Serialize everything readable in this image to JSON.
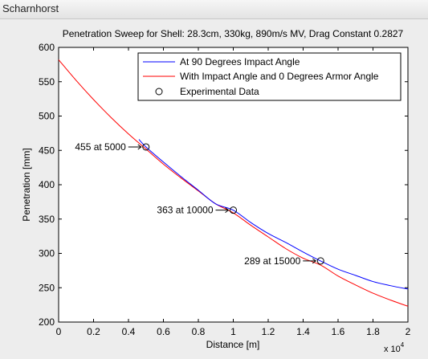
{
  "window": {
    "title": "Scharnhorst"
  },
  "chart_data": {
    "type": "line",
    "title": "Penetration Sweep for Shell: 28.3cm, 330kg, 890m/s MV, Drag Constant 0.2827",
    "xlabel": "Distance [m]",
    "ylabel": "Penetration [mm]",
    "x_multiplier_label": "x 10",
    "x_multiplier_exponent": "4",
    "xlim": [
      0,
      20000
    ],
    "ylim": [
      200,
      600
    ],
    "xticks": [
      0,
      2000,
      4000,
      6000,
      8000,
      10000,
      12000,
      14000,
      16000,
      18000,
      20000
    ],
    "xtick_labels": [
      "0",
      "0.2",
      "0.4",
      "0.6",
      "0.8",
      "1",
      "1.2",
      "1.4",
      "1.6",
      "1.8",
      "2"
    ],
    "yticks": [
      200,
      250,
      300,
      350,
      400,
      450,
      500,
      550,
      600
    ],
    "ytick_labels": [
      "200",
      "250",
      "300",
      "350",
      "400",
      "450",
      "500",
      "550",
      "600"
    ],
    "grid": false,
    "legend_position": "top-right",
    "series": [
      {
        "name": "At 90 Degrees Impact Angle",
        "color": "#0000ff",
        "x": [
          4600,
          5000,
          6000,
          7000,
          8000,
          9000,
          10000,
          11000,
          12000,
          13000,
          14000,
          15000,
          16000,
          17000,
          18000,
          19000,
          20000
        ],
        "y": [
          466,
          455,
          433,
          412,
          392,
          372,
          363,
          345,
          329,
          316,
          302,
          289,
          277,
          268,
          259,
          253,
          248
        ]
      },
      {
        "name": "With Impact Angle and 0 Degrees Armor Angle",
        "color": "#ff0000",
        "x": [
          0,
          1000,
          2000,
          3000,
          4000,
          5000,
          6000,
          7000,
          8000,
          9000,
          10000,
          11000,
          12000,
          13000,
          14000,
          15000,
          16000,
          17000,
          18000,
          19000,
          20000
        ],
        "y": [
          582,
          552,
          524,
          498,
          474,
          452,
          430,
          410,
          391,
          372,
          359,
          341,
          324,
          307,
          293,
          283,
          267,
          254,
          242,
          232,
          223
        ]
      },
      {
        "name": "Experimental Data",
        "marker": "circle",
        "x": [
          5000,
          10000,
          15000
        ],
        "y": [
          455,
          363,
          289
        ]
      }
    ],
    "annotations": [
      {
        "text": "455 at 5000",
        "x": 5000,
        "y": 455
      },
      {
        "text": "363 at 10000",
        "x": 10000,
        "y": 363
      },
      {
        "text": "289 at 15000",
        "x": 15000,
        "y": 289
      }
    ]
  }
}
